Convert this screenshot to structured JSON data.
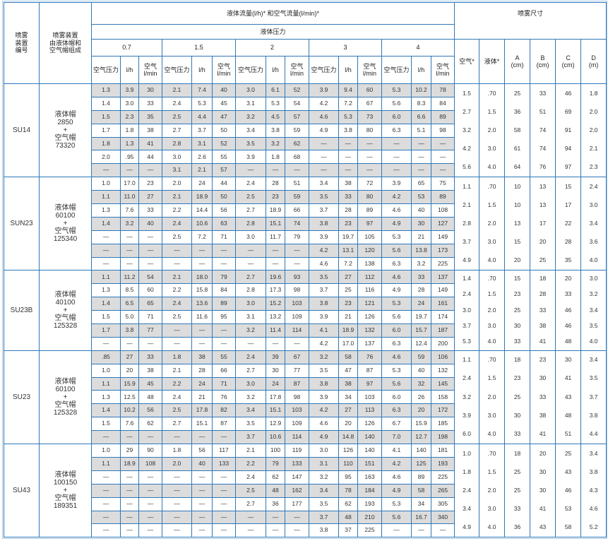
{
  "header": {
    "col_id": "喷雾\n装置\n编号",
    "col_comp": "喷雾装置\n由液体帽和\n空气帽组成",
    "flow_title": "液体流量(l/h)* 和空气流量(l/min)*",
    "liquid_pressure": "液体压力",
    "pressures": [
      "0.7",
      "1.5",
      "2",
      "3",
      "4"
    ],
    "sub_cols": [
      "空气压力",
      "l/h",
      "空气\nl/min"
    ],
    "spray_title": "喷雾尺寸",
    "spray_cols": [
      "空气*",
      "液体*",
      "A\n(cm)",
      "B\n(cm)",
      "C\n(cm)",
      "D\n(m)"
    ]
  },
  "colors": {
    "border": "#2f78b8",
    "shaded_row": "#dcdcdc"
  },
  "groups": [
    {
      "id": "SU14",
      "composition": "液体帽\n2850\n+\n空气帽\n73320",
      "rows": [
        [
          "1.3",
          "3.9",
          "30",
          "2.1",
          "7.4",
          "40",
          "3.0",
          "6.1",
          "52",
          "3.9",
          "9.4",
          "60",
          "5.3",
          "10.2",
          "78"
        ],
        [
          "1.4",
          "3.0",
          "33",
          "2.4",
          "5.3",
          "45",
          "3.1",
          "5.3",
          "54",
          "4.2",
          "7.2",
          "67",
          "5.6",
          "8.3",
          "84"
        ],
        [
          "1.5",
          "2.3",
          "35",
          "2.5",
          "4.4",
          "47",
          "3.2",
          "4.5",
          "57",
          "4.6",
          "5.3",
          "73",
          "6.0",
          "6.6",
          "89"
        ],
        [
          "1.7",
          "1.8",
          "38",
          "2.7",
          "3.7",
          "50",
          "3.4",
          "3.8",
          "59",
          "4.9",
          "3.8",
          "80",
          "6.3",
          "5.1",
          "98"
        ],
        [
          "1.8",
          "1.3",
          "41",
          "2.8",
          "3.1",
          "52",
          "3.5",
          "3.2",
          "62",
          "—",
          "—",
          "—",
          "—",
          "—",
          "—"
        ],
        [
          "2.0",
          ".95",
          "44",
          "3.0",
          "2.6",
          "55",
          "3.9",
          "1.8",
          "68",
          "—",
          "—",
          "—",
          "—",
          "—",
          "—"
        ],
        [
          "—",
          "—",
          "—",
          "3.1",
          "2.1",
          "57",
          "—",
          "—",
          "—",
          "—",
          "—",
          "—",
          "—",
          "—",
          "—"
        ]
      ],
      "spray": [
        [
          "1.5",
          "2.7",
          "3.2",
          "4.2",
          "5.6"
        ],
        [
          ".70",
          "1.5",
          "2.0",
          "3.0",
          "4.0"
        ],
        [
          "25",
          "36",
          "58",
          "61",
          "64"
        ],
        [
          "33",
          "51",
          "74",
          "74",
          "76"
        ],
        [
          "46",
          "69",
          "91",
          "94",
          "97"
        ],
        [
          "1.8",
          "2.0",
          "2.0",
          "2.1",
          "2.3"
        ]
      ]
    },
    {
      "id": "SUN23",
      "composition": "液体帽\n60100\n+\n空气帽\n125340",
      "rows": [
        [
          "1.0",
          "17.0",
          "23",
          "2.0",
          "24",
          "44",
          "2.4",
          "28",
          "51",
          "3.4",
          "38",
          "72",
          "3.9",
          "65",
          "75"
        ],
        [
          "1.1",
          "11.0",
          "27",
          "2.1",
          "18.9",
          "50",
          "2.5",
          "23",
          "59",
          "3.5",
          "33",
          "80",
          "4.2",
          "53",
          "89"
        ],
        [
          "1.3",
          "7.6",
          "33",
          "2.2",
          "14.4",
          "56",
          "2.7",
          "18.9",
          "66",
          "3.7",
          "28",
          "89",
          "4.6",
          "40",
          "108"
        ],
        [
          "1.4",
          "3.2",
          "40",
          "2.4",
          "10.6",
          "63",
          "2.8",
          "15.1",
          "74",
          "3.8",
          "23",
          "97",
          "4.9",
          "30",
          "127"
        ],
        [
          "—",
          "—",
          "—",
          "2.5",
          "7.2",
          "71",
          "3.0",
          "11.7",
          "79",
          "3.9",
          "19.7",
          "105",
          "5.3",
          "21",
          "149"
        ],
        [
          "—",
          "—",
          "—",
          "—",
          "—",
          "—",
          "—",
          "—",
          "—",
          "4.2",
          "13.1",
          "120",
          "5.6",
          "13.8",
          "173"
        ],
        [
          "—",
          "—",
          "—",
          "—",
          "—",
          "—",
          "—",
          "—",
          "—",
          "4.6",
          "7.2",
          "138",
          "6.3",
          "3.2",
          "225"
        ]
      ],
      "spray": [
        [
          "1.1",
          "2.1",
          "2.8",
          "3.7",
          "4.9"
        ],
        [
          ".70",
          "1.5",
          "2.0",
          "3.0",
          "4.0"
        ],
        [
          "10",
          "10",
          "13",
          "15",
          "20"
        ],
        [
          "13",
          "13",
          "17",
          "20",
          "25"
        ],
        [
          "15",
          "17",
          "22",
          "28",
          "35"
        ],
        [
          "2.4",
          "3.0",
          "3.4",
          "3.6",
          "4.0"
        ]
      ]
    },
    {
      "id": "SU23B",
      "composition": "液体帽\n40100\n+\n空气帽\n125328",
      "rows": [
        [
          "1.1",
          "11.2",
          "54",
          "2.1",
          "18.0",
          "79",
          "2.7",
          "19.6",
          "93",
          "3.5",
          "27",
          "112",
          "4.6",
          "33",
          "137"
        ],
        [
          "1.3",
          "8.5",
          "60",
          "2.2",
          "15.8",
          "84",
          "2.8",
          "17.3",
          "98",
          "3.7",
          "25",
          "116",
          "4.9",
          "28",
          "149"
        ],
        [
          "1.4",
          "6.5",
          "65",
          "2.4",
          "13.6",
          "89",
          "3.0",
          "15.2",
          "103",
          "3.8",
          "23",
          "121",
          "5.3",
          "24",
          "161"
        ],
        [
          "1.5",
          "5.0",
          "71",
          "2.5",
          "11.6",
          "95",
          "3.1",
          "13.2",
          "109",
          "3.9",
          "21",
          "126",
          "5.6",
          "19.7",
          "174"
        ],
        [
          "1.7",
          "3.8",
          "77",
          "—",
          "—",
          "—",
          "3.2",
          "11.4",
          "114",
          "4.1",
          "18.9",
          "132",
          "6.0",
          "15.7",
          "187"
        ],
        [
          "—",
          "—",
          "—",
          "—",
          "—",
          "—",
          "—",
          "—",
          "—",
          "4.2",
          "17.0",
          "137",
          "6.3",
          "12.4",
          "200"
        ]
      ],
      "spray": [
        [
          "1.4",
          "2.4",
          "3.0",
          "3.7",
          "5.3"
        ],
        [
          ".70",
          "1.5",
          "2.0",
          "3.0",
          "4.0"
        ],
        [
          "15",
          "23",
          "25",
          "30",
          "33"
        ],
        [
          "18",
          "28",
          "33",
          "38",
          "41"
        ],
        [
          "20",
          "33",
          "46",
          "46",
          "48"
        ],
        [
          "3.0",
          "3.2",
          "3.4",
          "3.5",
          "4.0"
        ]
      ]
    },
    {
      "id": "SU23",
      "composition": "液体帽\n60100\n+\n空气帽\n125328",
      "rows": [
        [
          ".85",
          "27",
          "33",
          "1.8",
          "38",
          "55",
          "2.4",
          "39",
          "67",
          "3.2",
          "58",
          "76",
          "4.6",
          "59",
          "106"
        ],
        [
          "1.0",
          "20",
          "38",
          "2.1",
          "28",
          "66",
          "2.7",
          "30",
          "77",
          "3.5",
          "47",
          "87",
          "5.3",
          "40",
          "132"
        ],
        [
          "1.1",
          "15.9",
          "45",
          "2.2",
          "24",
          "71",
          "3.0",
          "24",
          "87",
          "3.8",
          "38",
          "97",
          "5.6",
          "32",
          "145"
        ],
        [
          "1.3",
          "12.5",
          "48",
          "2.4",
          "21",
          "76",
          "3.2",
          "17.8",
          "98",
          "3.9",
          "34",
          "103",
          "6.0",
          "26",
          "158"
        ],
        [
          "1.4",
          "10.2",
          "56",
          "2.5",
          "17.8",
          "82",
          "3.4",
          "15.1",
          "103",
          "4.2",
          "27",
          "113",
          "6.3",
          "20",
          "172"
        ],
        [
          "1.5",
          "7.6",
          "62",
          "2.7",
          "15.1",
          "87",
          "3.5",
          "12.9",
          "109",
          "4.6",
          "20",
          "126",
          "6.7",
          "15.9",
          "185"
        ],
        [
          "—",
          "—",
          "—",
          "—",
          "—",
          "—",
          "3.7",
          "10.6",
          "114",
          "4.9",
          "14.8",
          "140",
          "7.0",
          "12.7",
          "198"
        ]
      ],
      "spray": [
        [
          "1.1",
          "2.4",
          "3.2",
          "3.9",
          "6.0"
        ],
        [
          ".70",
          "1.5",
          "2.0",
          "3.0",
          "4.0"
        ],
        [
          "18",
          "23",
          "25",
          "30",
          "33"
        ],
        [
          "23",
          "30",
          "33",
          "38",
          "41"
        ],
        [
          "30",
          "41",
          "43",
          "48",
          "51"
        ],
        [
          "3.4",
          "3.5",
          "3.7",
          "3.8",
          "4.4"
        ]
      ]
    },
    {
      "id": "SU43",
      "composition": "液体帽\n100150\n+\n空气帽\n189351",
      "rows": [
        [
          "1.0",
          "29",
          "90",
          "1.8",
          "56",
          "117",
          "2.1",
          "100",
          "119",
          "3.0",
          "126",
          "140",
          "4.1",
          "140",
          "181"
        ],
        [
          "1.1",
          "18.9",
          "108",
          "2.0",
          "40",
          "133",
          "2.2",
          "79",
          "133",
          "3.1",
          "110",
          "151",
          "4.2",
          "125",
          "193"
        ],
        [
          "—",
          "—",
          "—",
          "—",
          "—",
          "—",
          "2.4",
          "62",
          "147",
          "3.2",
          "95",
          "163",
          "4.6",
          "89",
          "225"
        ],
        [
          "—",
          "—",
          "—",
          "—",
          "—",
          "—",
          "2.5",
          "48",
          "162",
          "3.4",
          "78",
          "184",
          "4.9",
          "58",
          "265"
        ],
        [
          "—",
          "—",
          "—",
          "—",
          "—",
          "—",
          "2.7",
          "36",
          "177",
          "3.5",
          "62",
          "193",
          "5.3",
          "34",
          "305"
        ],
        [
          "—",
          "—",
          "—",
          "—",
          "—",
          "—",
          "—",
          "—",
          "—",
          "3.7",
          "48",
          "210",
          "5.6",
          "16.7",
          "340"
        ],
        [
          "—",
          "—",
          "—",
          "—",
          "—",
          "—",
          "—",
          "—",
          "—",
          "3.8",
          "37",
          "225",
          "—",
          "—",
          "—"
        ]
      ],
      "spray": [
        [
          "1.0",
          "1.8",
          "2.4",
          "3.4",
          "4.9"
        ],
        [
          ".70",
          "1.5",
          "2.0",
          "3.0",
          "4.0"
        ],
        [
          "18",
          "25",
          "25",
          "33",
          "36"
        ],
        [
          "20",
          "30",
          "30",
          "41",
          "43"
        ],
        [
          "25",
          "43",
          "46",
          "53",
          "58"
        ],
        [
          "3.4",
          "3.8",
          "4.3",
          "4.6",
          "5.2"
        ]
      ]
    }
  ]
}
